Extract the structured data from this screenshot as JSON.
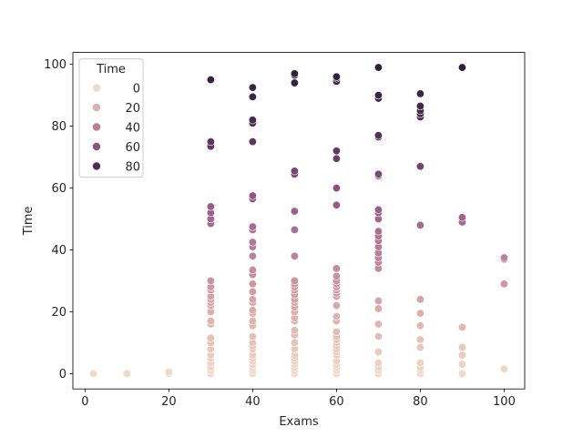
{
  "chart_data": {
    "type": "scatter",
    "title": "",
    "xlabel": "Exams",
    "ylabel": "Time",
    "xlim": [
      -2.9,
      104.9
    ],
    "ylim": [
      -4.95,
      103.85
    ],
    "x_ticks": [
      0,
      20,
      40,
      60,
      80,
      100
    ],
    "y_ticks": [
      0,
      20,
      40,
      60,
      80,
      100
    ],
    "grid": false,
    "legend": {
      "title": "Time",
      "placement": "top-left",
      "entries": [
        {
          "label": "0",
          "color": "#f1d9c8"
        },
        {
          "label": "20",
          "color": "#ddaeab"
        },
        {
          "label": "40",
          "color": "#b97d98"
        },
        {
          "label": "60",
          "color": "#8a5183"
        },
        {
          "label": "80",
          "color": "#4e2c55"
        }
      ]
    },
    "hue_scale": {
      "min": 0,
      "max": 99,
      "stops": [
        "#f1d9c8",
        "#ddaeab",
        "#b97d98",
        "#8a5183",
        "#4e2c55",
        "#2e1e3b"
      ]
    },
    "points": [
      [
        2,
        0
      ],
      [
        10,
        0
      ],
      [
        20,
        0
      ],
      [
        20,
        0.5
      ],
      [
        30,
        0
      ],
      [
        30,
        1
      ],
      [
        30,
        2
      ],
      [
        30,
        3.5
      ],
      [
        30,
        5
      ],
      [
        30,
        6
      ],
      [
        30,
        8
      ],
      [
        30,
        10
      ],
      [
        30,
        11.5
      ],
      [
        30,
        16
      ],
      [
        30,
        17
      ],
      [
        30,
        20
      ],
      [
        30,
        22
      ],
      [
        30,
        23
      ],
      [
        30,
        24
      ],
      [
        30,
        25
      ],
      [
        30,
        27
      ],
      [
        30,
        28
      ],
      [
        30,
        30
      ],
      [
        30,
        48.5
      ],
      [
        30,
        50
      ],
      [
        30,
        52
      ],
      [
        30,
        54
      ],
      [
        30,
        73.5
      ],
      [
        30,
        75
      ],
      [
        30,
        95
      ],
      [
        40,
        0
      ],
      [
        40,
        1
      ],
      [
        40,
        2
      ],
      [
        40,
        3
      ],
      [
        40,
        4
      ],
      [
        40,
        5
      ],
      [
        40,
        6
      ],
      [
        40,
        8
      ],
      [
        40,
        9
      ],
      [
        40,
        10
      ],
      [
        40,
        12
      ],
      [
        40,
        15.5
      ],
      [
        40,
        17
      ],
      [
        40,
        19.5
      ],
      [
        40,
        20.5
      ],
      [
        40,
        23
      ],
      [
        40,
        24
      ],
      [
        40,
        26.5
      ],
      [
        40,
        29
      ],
      [
        40,
        32
      ],
      [
        40,
        33.5
      ],
      [
        40,
        38
      ],
      [
        40,
        41
      ],
      [
        40,
        42.5
      ],
      [
        40,
        46.5
      ],
      [
        40,
        47.5
      ],
      [
        40,
        56.5
      ],
      [
        40,
        57.5
      ],
      [
        40,
        75
      ],
      [
        40,
        81
      ],
      [
        40,
        82
      ],
      [
        40,
        89.5
      ],
      [
        40,
        92.5
      ],
      [
        50,
        0
      ],
      [
        50,
        1
      ],
      [
        50,
        2
      ],
      [
        50,
        3
      ],
      [
        50,
        4
      ],
      [
        50,
        5
      ],
      [
        50,
        6
      ],
      [
        50,
        8
      ],
      [
        50,
        10
      ],
      [
        50,
        12.5
      ],
      [
        50,
        14
      ],
      [
        50,
        17
      ],
      [
        50,
        18
      ],
      [
        50,
        20
      ],
      [
        50,
        21.5
      ],
      [
        50,
        23
      ],
      [
        50,
        24
      ],
      [
        50,
        25.5
      ],
      [
        50,
        27
      ],
      [
        50,
        28
      ],
      [
        50,
        29
      ],
      [
        50,
        30
      ],
      [
        50,
        38
      ],
      [
        50,
        46.5
      ],
      [
        50,
        52.5
      ],
      [
        50,
        64.5
      ],
      [
        50,
        65.5
      ],
      [
        50,
        94
      ],
      [
        50,
        96.5
      ],
      [
        50,
        97
      ],
      [
        60,
        0
      ],
      [
        60,
        1
      ],
      [
        60,
        2
      ],
      [
        60,
        3
      ],
      [
        60,
        4
      ],
      [
        60,
        6
      ],
      [
        60,
        7
      ],
      [
        60,
        8
      ],
      [
        60,
        9
      ],
      [
        60,
        10
      ],
      [
        60,
        11
      ],
      [
        60,
        12
      ],
      [
        60,
        13.5
      ],
      [
        60,
        17
      ],
      [
        60,
        18.5
      ],
      [
        60,
        22
      ],
      [
        60,
        25
      ],
      [
        60,
        26
      ],
      [
        60,
        27
      ],
      [
        60,
        28
      ],
      [
        60,
        29
      ],
      [
        60,
        30
      ],
      [
        60,
        31.5
      ],
      [
        60,
        34
      ],
      [
        60,
        54.5
      ],
      [
        60,
        60
      ],
      [
        60,
        69.5
      ],
      [
        60,
        72
      ],
      [
        60,
        94.5
      ],
      [
        60,
        95.5
      ],
      [
        60,
        96
      ],
      [
        70,
        0
      ],
      [
        70,
        1
      ],
      [
        70,
        2
      ],
      [
        70,
        3.5
      ],
      [
        70,
        7
      ],
      [
        70,
        12
      ],
      [
        70,
        16
      ],
      [
        70,
        21
      ],
      [
        70,
        23.5
      ],
      [
        70,
        34
      ],
      [
        70,
        36
      ],
      [
        70,
        37.5
      ],
      [
        70,
        39
      ],
      [
        70,
        41
      ],
      [
        70,
        43
      ],
      [
        70,
        44.5
      ],
      [
        70,
        46
      ],
      [
        70,
        50
      ],
      [
        70,
        52
      ],
      [
        70,
        53
      ],
      [
        70,
        64
      ],
      [
        70,
        64.5
      ],
      [
        70,
        76.5
      ],
      [
        70,
        77
      ],
      [
        70,
        89
      ],
      [
        70,
        90
      ],
      [
        70,
        99
      ],
      [
        80,
        0
      ],
      [
        80,
        1
      ],
      [
        80,
        2
      ],
      [
        80,
        3.5
      ],
      [
        80,
        8.5
      ],
      [
        80,
        11
      ],
      [
        80,
        15.5
      ],
      [
        80,
        19.5
      ],
      [
        80,
        24
      ],
      [
        80,
        48
      ],
      [
        80,
        67
      ],
      [
        80,
        83
      ],
      [
        80,
        84
      ],
      [
        80,
        85
      ],
      [
        80,
        86.5
      ],
      [
        80,
        90.5
      ],
      [
        90,
        0
      ],
      [
        90,
        3
      ],
      [
        90,
        6
      ],
      [
        90,
        8.5
      ],
      [
        90,
        15
      ],
      [
        90,
        49
      ],
      [
        90,
        50.5
      ],
      [
        90,
        99
      ],
      [
        100,
        1.5
      ],
      [
        100,
        29
      ],
      [
        100,
        37
      ],
      [
        100,
        37.5
      ]
    ]
  }
}
